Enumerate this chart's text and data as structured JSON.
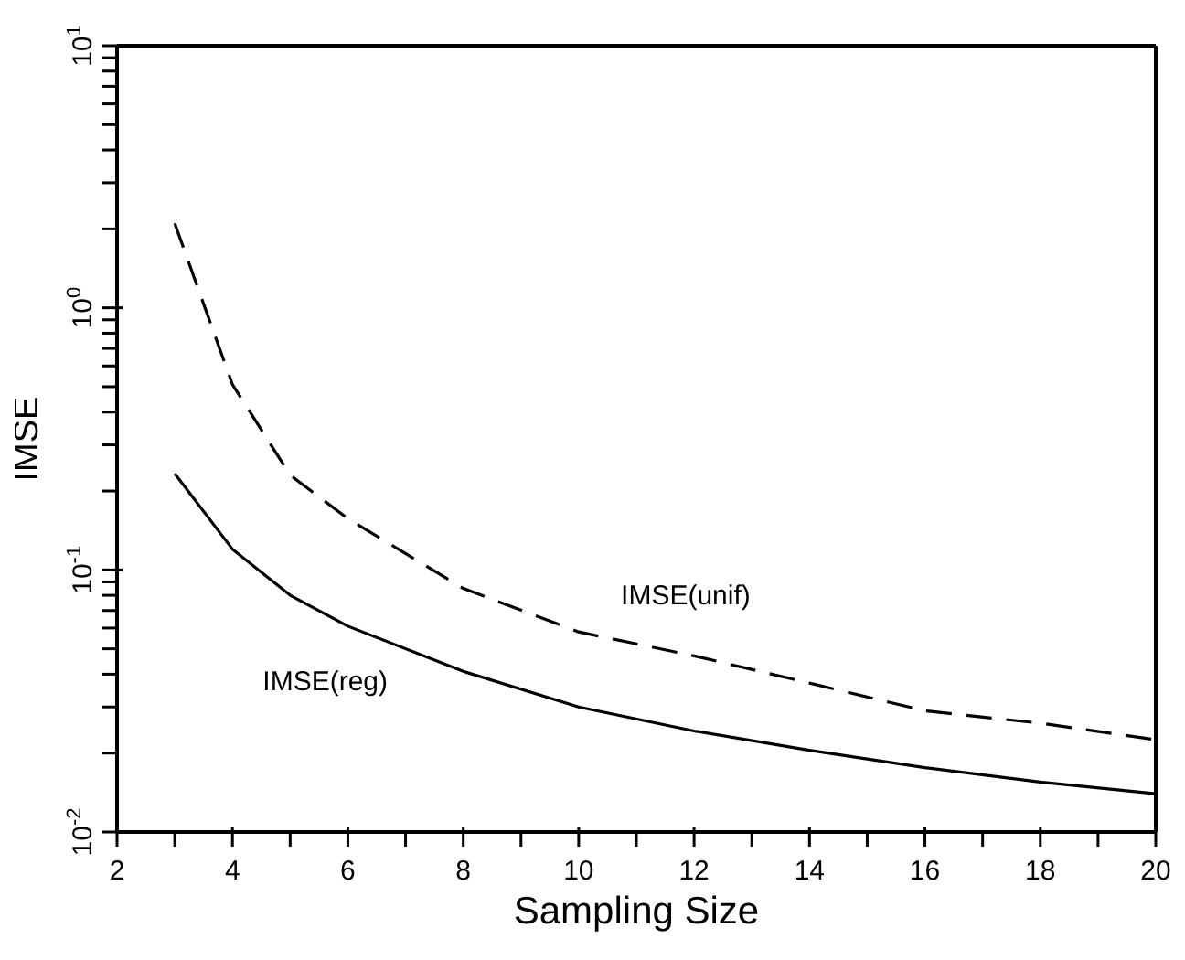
{
  "chart_data": {
    "type": "line",
    "xlabel": "Sampling Size",
    "ylabel": "IMSE",
    "x": [
      3,
      4,
      5,
      6,
      8,
      10,
      12,
      14,
      16,
      18,
      20
    ],
    "series": [
      {
        "name": "IMSE(unif)",
        "color": "#000000",
        "line_style": "dashed",
        "values": [
          2.1,
          0.51,
          0.23,
          0.157,
          0.085,
          0.058,
          0.047,
          0.037,
          0.029,
          0.026,
          0.0225
        ]
      },
      {
        "name": "IMSE(reg)",
        "color": "#000000",
        "line_style": "solid",
        "values": [
          0.233,
          0.12,
          0.08,
          0.061,
          0.041,
          0.03,
          0.0243,
          0.0205,
          0.0176,
          0.0155,
          0.014
        ]
      }
    ],
    "log": "y",
    "xlim": [
      2,
      20
    ],
    "ylim": [
      0.01,
      10
    ],
    "xticks": [
      2,
      {
        "value": 3,
        "label": null
      },
      4,
      {
        "value": 5,
        "label": null
      },
      6,
      {
        "value": 7,
        "label": null
      },
      8,
      {
        "value": 9,
        "label": null
      },
      10,
      {
        "value": 11,
        "label": null
      },
      12,
      {
        "value": 13,
        "label": null
      },
      14,
      {
        "value": 15,
        "label": null
      },
      16,
      {
        "value": 17,
        "label": null
      },
      18,
      {
        "value": 19,
        "label": null
      },
      20
    ],
    "yticks": [
      {
        "value": 0.01,
        "label": "10$^{-2}$"
      },
      {
        "value": 0.02,
        "label": null
      },
      {
        "value": 0.03,
        "label": null
      },
      {
        "value": 0.04,
        "label": null
      },
      {
        "value": 0.05,
        "label": null
      },
      {
        "value": 0.06,
        "label": null
      },
      {
        "value": 0.07,
        "label": null
      },
      {
        "value": 0.08,
        "label": null
      },
      {
        "value": 0.09,
        "label": null
      },
      {
        "value": 0.1,
        "label": "10$^{-1}$"
      },
      {
        "value": 0.2,
        "label": null
      },
      {
        "value": 0.3,
        "label": null
      },
      {
        "value": 0.4,
        "label": null
      },
      {
        "value": 0.5,
        "label": null
      },
      {
        "value": 0.6,
        "label": null
      },
      {
        "value": 0.7,
        "label": null
      },
      {
        "value": 0.8,
        "label": null
      },
      {
        "value": 0.9,
        "label": null
      },
      {
        "value": 1,
        "label": "10$^{0}$"
      },
      {
        "value": 2,
        "label": null
      },
      {
        "value": 3,
        "label": null
      },
      {
        "value": 4,
        "label": null
      },
      {
        "value": 5,
        "label": null
      },
      {
        "value": 6,
        "label": null
      },
      {
        "value": 7,
        "label": null
      },
      {
        "value": 8,
        "label": null
      },
      {
        "value": 9,
        "label": null
      },
      {
        "value": 10,
        "label": "10$^{1}$"
      }
    ],
    "grid": false,
    "legend": false,
    "marker": "none"
  }
}
